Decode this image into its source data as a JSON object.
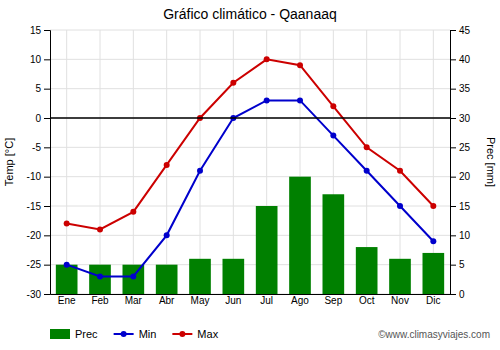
{
  "chart_data": {
    "type": "bar",
    "title": "Gráfico climático - Qaanaaq",
    "categories": [
      "Ene",
      "Feb",
      "Mar",
      "Abr",
      "May",
      "Jun",
      "Jul",
      "Ago",
      "Sep",
      "Oct",
      "Nov",
      "Dic"
    ],
    "series": [
      {
        "name": "Prec",
        "type": "bar",
        "axis": "y2",
        "color": "#008000",
        "values": [
          5,
          5,
          5,
          5,
          6,
          6,
          15,
          20,
          17,
          8,
          6,
          7
        ]
      },
      {
        "name": "Min",
        "type": "line",
        "marker": "circle",
        "color": "#0000cc",
        "values": [
          -25,
          -27,
          -27,
          -20,
          -9,
          0,
          3,
          3,
          -3,
          -9,
          -15,
          -21
        ]
      },
      {
        "name": "Max",
        "type": "line",
        "marker": "circle",
        "color": "#cc0000",
        "values": [
          -18,
          -19,
          -16,
          -8,
          0,
          6,
          10,
          9,
          2,
          -5,
          -9,
          -15
        ]
      }
    ],
    "ylabel": "Temp [°C]",
    "y2label": "Prec [mm]",
    "ylim": [
      -30,
      15
    ],
    "yticks": [
      -30,
      -25,
      -20,
      -15,
      -10,
      -5,
      0,
      5,
      10,
      15
    ],
    "y2lim": [
      0,
      45
    ],
    "y2ticks": [
      0,
      5,
      10,
      15,
      20,
      25,
      30,
      35,
      40,
      45
    ],
    "hlines": [
      0
    ],
    "grid": true,
    "legend": "bottom",
    "annotations": [
      "©www.climasyviajes.com"
    ]
  }
}
